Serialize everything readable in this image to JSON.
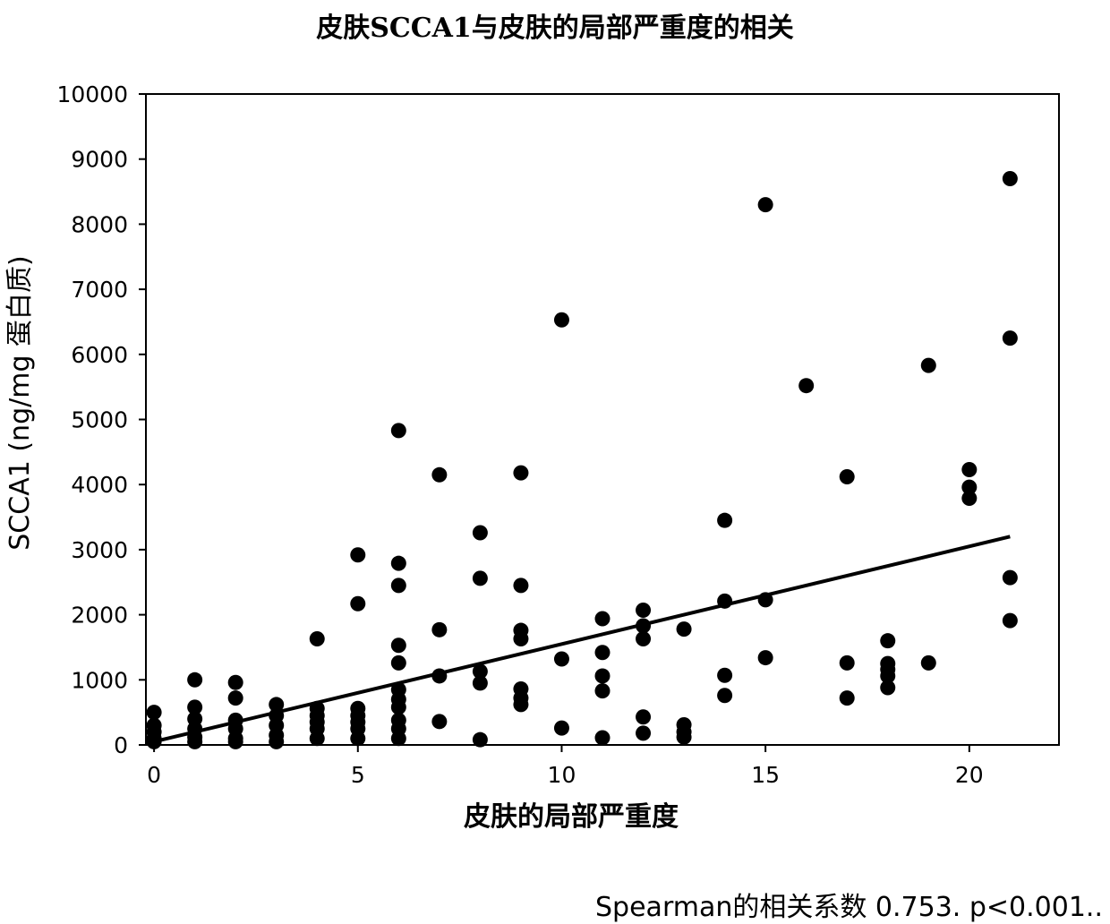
{
  "chart_data": {
    "type": "scatter",
    "title": "皮肤SCCA1与皮肤的局部严重度的相关",
    "xlabel": "皮肤的局部严重度",
    "ylabel": "SCCA1 (ng/mg 蛋白质)",
    "xlim": [
      -0.2,
      22.2
    ],
    "ylim": [
      0,
      10000
    ],
    "x_ticks": [
      0,
      5,
      10,
      15,
      20
    ],
    "y_ticks": [
      0,
      1000,
      2000,
      3000,
      4000,
      5000,
      6000,
      7000,
      8000,
      9000,
      10000
    ],
    "grid": false,
    "legend": "none",
    "marker_color": "#000000",
    "points": [
      {
        "x": 0,
        "y": 500
      },
      {
        "x": 0,
        "y": 300
      },
      {
        "x": 0,
        "y": 200
      },
      {
        "x": 0,
        "y": 100
      },
      {
        "x": 0,
        "y": 50
      },
      {
        "x": 1,
        "y": 1000
      },
      {
        "x": 1,
        "y": 580
      },
      {
        "x": 1,
        "y": 400
      },
      {
        "x": 1,
        "y": 250
      },
      {
        "x": 1,
        "y": 120
      },
      {
        "x": 1,
        "y": 50
      },
      {
        "x": 2,
        "y": 960
      },
      {
        "x": 2,
        "y": 720
      },
      {
        "x": 2,
        "y": 380
      },
      {
        "x": 2,
        "y": 250
      },
      {
        "x": 2,
        "y": 100
      },
      {
        "x": 2,
        "y": 50
      },
      {
        "x": 3,
        "y": 620
      },
      {
        "x": 3,
        "y": 450
      },
      {
        "x": 3,
        "y": 300
      },
      {
        "x": 3,
        "y": 150
      },
      {
        "x": 3,
        "y": 50
      },
      {
        "x": 4,
        "y": 1630
      },
      {
        "x": 4,
        "y": 560
      },
      {
        "x": 4,
        "y": 450
      },
      {
        "x": 4,
        "y": 350
      },
      {
        "x": 4,
        "y": 250
      },
      {
        "x": 4,
        "y": 100
      },
      {
        "x": 5,
        "y": 2920
      },
      {
        "x": 5,
        "y": 2170
      },
      {
        "x": 5,
        "y": 560
      },
      {
        "x": 5,
        "y": 450
      },
      {
        "x": 5,
        "y": 350
      },
      {
        "x": 5,
        "y": 250
      },
      {
        "x": 5,
        "y": 100
      },
      {
        "x": 6,
        "y": 4830
      },
      {
        "x": 6,
        "y": 2790
      },
      {
        "x": 6,
        "y": 2450
      },
      {
        "x": 6,
        "y": 1530
      },
      {
        "x": 6,
        "y": 1260
      },
      {
        "x": 6,
        "y": 850
      },
      {
        "x": 6,
        "y": 700
      },
      {
        "x": 6,
        "y": 580
      },
      {
        "x": 6,
        "y": 380
      },
      {
        "x": 6,
        "y": 250
      },
      {
        "x": 6,
        "y": 100
      },
      {
        "x": 7,
        "y": 4150
      },
      {
        "x": 7,
        "y": 1770
      },
      {
        "x": 7,
        "y": 1060
      },
      {
        "x": 7,
        "y": 360
      },
      {
        "x": 8,
        "y": 3260
      },
      {
        "x": 8,
        "y": 2560
      },
      {
        "x": 8,
        "y": 1130
      },
      {
        "x": 8,
        "y": 950
      },
      {
        "x": 8,
        "y": 80
      },
      {
        "x": 9,
        "y": 4180
      },
      {
        "x": 9,
        "y": 2450
      },
      {
        "x": 9,
        "y": 1760
      },
      {
        "x": 9,
        "y": 1630
      },
      {
        "x": 9,
        "y": 860
      },
      {
        "x": 9,
        "y": 720
      },
      {
        "x": 9,
        "y": 620
      },
      {
        "x": 10,
        "y": 6530
      },
      {
        "x": 10,
        "y": 1320
      },
      {
        "x": 10,
        "y": 260
      },
      {
        "x": 11,
        "y": 1940
      },
      {
        "x": 11,
        "y": 1420
      },
      {
        "x": 11,
        "y": 1060
      },
      {
        "x": 11,
        "y": 830
      },
      {
        "x": 11,
        "y": 110
      },
      {
        "x": 12,
        "y": 2070
      },
      {
        "x": 12,
        "y": 1830
      },
      {
        "x": 12,
        "y": 1630
      },
      {
        "x": 12,
        "y": 430
      },
      {
        "x": 12,
        "y": 180
      },
      {
        "x": 13,
        "y": 1780
      },
      {
        "x": 13,
        "y": 310
      },
      {
        "x": 13,
        "y": 200
      },
      {
        "x": 13,
        "y": 120
      },
      {
        "x": 14,
        "y": 3450
      },
      {
        "x": 14,
        "y": 2210
      },
      {
        "x": 14,
        "y": 1070
      },
      {
        "x": 14,
        "y": 760
      },
      {
        "x": 15,
        "y": 8300
      },
      {
        "x": 15,
        "y": 2230
      },
      {
        "x": 15,
        "y": 1340
      },
      {
        "x": 16,
        "y": 5520
      },
      {
        "x": 17,
        "y": 4120
      },
      {
        "x": 17,
        "y": 1260
      },
      {
        "x": 17,
        "y": 720
      },
      {
        "x": 18,
        "y": 1600
      },
      {
        "x": 18,
        "y": 1250
      },
      {
        "x": 18,
        "y": 1160
      },
      {
        "x": 18,
        "y": 1060
      },
      {
        "x": 18,
        "y": 880
      },
      {
        "x": 19,
        "y": 5830
      },
      {
        "x": 19,
        "y": 1260
      },
      {
        "x": 20,
        "y": 4230
      },
      {
        "x": 20,
        "y": 3960
      },
      {
        "x": 20,
        "y": 3790
      },
      {
        "x": 21,
        "y": 8700
      },
      {
        "x": 21,
        "y": 6250
      },
      {
        "x": 21,
        "y": 2570
      },
      {
        "x": 21,
        "y": 1910
      }
    ],
    "trendline": {
      "x": [
        0,
        21
      ],
      "y": [
        50,
        3200
      ]
    }
  },
  "note": "Spearman的相关系数 0.753. p<0.001.."
}
